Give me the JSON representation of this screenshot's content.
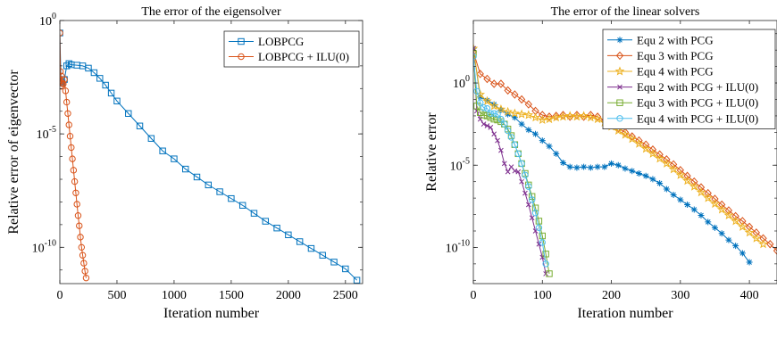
{
  "colors": {
    "blue": "#0072bd",
    "orange": "#d95319",
    "yellow": "#edb120",
    "purple": "#7e2f8e",
    "green": "#77ac30",
    "cyan": "#4dbeee"
  },
  "chart_data": [
    {
      "type": "line",
      "title": "The error of the eigensolver",
      "xlabel": "Iteration number",
      "ylabel": "Relative error of eigenvector",
      "xlim": [
        0,
        2650
      ],
      "ylim_log10": [
        -11.6,
        0
      ],
      "yscale": "log",
      "legend_position": "top-right",
      "xticks": [
        0,
        500,
        1000,
        1500,
        2000,
        2500
      ],
      "xtick_labels": [
        "0",
        "500",
        "1000",
        "1500",
        "2000",
        "2500"
      ],
      "yticks_log10": [
        0,
        -5,
        -10
      ],
      "ytick_labels": [
        {
          "base": "10",
          "exp": "0"
        },
        {
          "base": "10",
          "exp": "-5"
        },
        {
          "base": "10",
          "exp": "-10"
        }
      ],
      "series": [
        {
          "name": "LOBPCG",
          "color": "blue",
          "marker": "square",
          "x": [
            0,
            10,
            20,
            40,
            60,
            80,
            100,
            150,
            200,
            250,
            300,
            350,
            400,
            450,
            500,
            600,
            700,
            800,
            900,
            1000,
            1100,
            1200,
            1300,
            1400,
            1500,
            1600,
            1700,
            1800,
            1900,
            2000,
            2100,
            2200,
            2300,
            2400,
            2500,
            2600
          ],
          "log10y": [
            -0.55,
            -2.7,
            -2.75,
            -2.6,
            -2.0,
            -1.9,
            -1.95,
            -1.97,
            -2.0,
            -2.1,
            -2.3,
            -2.55,
            -2.85,
            -3.2,
            -3.55,
            -4.1,
            -4.65,
            -5.2,
            -5.75,
            -6.1,
            -6.55,
            -6.9,
            -7.25,
            -7.55,
            -7.85,
            -8.15,
            -8.5,
            -8.85,
            -9.15,
            -9.45,
            -9.75,
            -10.05,
            -10.35,
            -10.65,
            -10.95,
            -11.45
          ]
        },
        {
          "name": "LOBPCG + ILU(0)",
          "color": "orange",
          "marker": "circle",
          "x": [
            0,
            5,
            10,
            15,
            20,
            30,
            40,
            50,
            60,
            70,
            80,
            90,
            100,
            110,
            120,
            130,
            140,
            150,
            160,
            170,
            180,
            190,
            200,
            210,
            220,
            230
          ],
          "log10y": [
            -0.55,
            -2.25,
            -2.9,
            -2.45,
            -2.75,
            -2.8,
            -2.6,
            -3.1,
            -3.6,
            -4.1,
            -4.6,
            -5.1,
            -5.6,
            -6.1,
            -6.6,
            -7.1,
            -7.6,
            -8.1,
            -8.6,
            -9.05,
            -9.55,
            -10.0,
            -10.35,
            -10.7,
            -11.05,
            -11.35
          ]
        }
      ]
    },
    {
      "type": "line",
      "title": "The error of the linear solvers",
      "xlabel": "Iteration number",
      "ylabel": "Relative error",
      "xlim": [
        0,
        440
      ],
      "ylim_log10": [
        -12.2,
        3.8
      ],
      "yscale": "log",
      "legend_position": "top-right",
      "xticks": [
        0,
        100,
        200,
        300,
        400
      ],
      "xtick_labels": [
        "0",
        "100",
        "200",
        "300",
        "400"
      ],
      "yticks_log10": [
        0,
        -5,
        -10
      ],
      "ytick_labels": [
        {
          "base": "10",
          "exp": "0"
        },
        {
          "base": "10",
          "exp": "-5"
        },
        {
          "base": "10",
          "exp": "-10"
        }
      ],
      "series": [
        {
          "name": "Equ 2 with PCG",
          "color": "blue",
          "marker": "star",
          "x": [
            0,
            10,
            20,
            30,
            40,
            50,
            60,
            70,
            80,
            90,
            100,
            110,
            120,
            130,
            140,
            150,
            160,
            170,
            180,
            190,
            200,
            210,
            220,
            230,
            240,
            250,
            260,
            270,
            280,
            290,
            300,
            310,
            320,
            330,
            340,
            350,
            360,
            370,
            380,
            390,
            400
          ],
          "log10y": [
            2.1,
            -0.85,
            -1.05,
            -1.3,
            -1.65,
            -1.9,
            -2.1,
            -2.5,
            -2.85,
            -3.1,
            -3.5,
            -3.85,
            -4.3,
            -4.85,
            -5.1,
            -5.15,
            -5.1,
            -5.15,
            -5.1,
            -5.1,
            -4.9,
            -5.0,
            -5.2,
            -5.35,
            -5.5,
            -5.65,
            -5.85,
            -6.1,
            -6.45,
            -6.8,
            -7.1,
            -7.4,
            -7.7,
            -8.05,
            -8.45,
            -8.8,
            -9.15,
            -9.55,
            -9.9,
            -10.35,
            -10.9
          ]
        },
        {
          "name": "Equ 3 with PCG",
          "color": "orange",
          "marker": "diamond",
          "x": [
            0,
            10,
            20,
            30,
            40,
            50,
            60,
            70,
            80,
            90,
            100,
            110,
            120,
            130,
            140,
            150,
            160,
            170,
            180,
            190,
            200,
            210,
            220,
            230,
            240,
            250,
            260,
            270,
            280,
            290,
            300,
            310,
            320,
            330,
            340,
            350,
            360,
            370,
            380,
            390,
            400,
            410,
            420,
            430,
            440
          ],
          "log10y": [
            1.9,
            0.55,
            0.25,
            -0.05,
            -0.05,
            -0.45,
            -0.7,
            -1.0,
            -1.3,
            -1.7,
            -1.95,
            -2.05,
            -2.0,
            -1.95,
            -2.05,
            -1.95,
            -2.05,
            -1.95,
            -2.05,
            -2.3,
            -2.5,
            -2.75,
            -3.0,
            -3.25,
            -3.5,
            -3.75,
            -4.05,
            -4.35,
            -4.65,
            -4.95,
            -5.3,
            -5.65,
            -6.0,
            -6.35,
            -6.7,
            -7.05,
            -7.4,
            -7.75,
            -8.1,
            -8.4,
            -8.75,
            -9.1,
            -9.45,
            -9.8,
            -10.2
          ]
        },
        {
          "name": "Equ 4 with PCG",
          "color": "yellow",
          "marker": "pentagram",
          "x": [
            0,
            10,
            20,
            30,
            40,
            50,
            60,
            70,
            80,
            90,
            100,
            110,
            120,
            130,
            140,
            150,
            160,
            170,
            180,
            190,
            200,
            210,
            220,
            230,
            240,
            250,
            260,
            270,
            280,
            290,
            300,
            310,
            320,
            330,
            340,
            350,
            360,
            370,
            380,
            390,
            400,
            410,
            420
          ],
          "log10y": [
            2.1,
            -0.7,
            -1.1,
            -1.4,
            -1.6,
            -1.75,
            -1.85,
            -1.9,
            -1.95,
            -2.1,
            -2.25,
            -2.2,
            -2.1,
            -2.05,
            -2.0,
            -2.05,
            -2.0,
            -2.1,
            -2.2,
            -2.4,
            -2.65,
            -2.9,
            -3.15,
            -3.4,
            -3.7,
            -4.0,
            -4.3,
            -4.6,
            -4.9,
            -5.25,
            -5.6,
            -5.95,
            -6.3,
            -6.65,
            -7.0,
            -7.35,
            -7.7,
            -8.05,
            -8.4,
            -8.75,
            -9.1,
            -9.45,
            -9.8
          ]
        },
        {
          "name": "Equ 2 with PCG + ILU(0)",
          "color": "purple",
          "marker": "x",
          "x": [
            0,
            5,
            10,
            15,
            20,
            25,
            30,
            35,
            40,
            45,
            50,
            55,
            60,
            65,
            70,
            75,
            80,
            85,
            90,
            95,
            100,
            105
          ],
          "log10y": [
            2.1,
            -1.7,
            -2.2,
            -2.5,
            -2.6,
            -2.7,
            -3.1,
            -3.5,
            -4.1,
            -4.9,
            -5.4,
            -5.1,
            -5.35,
            -5.4,
            -6.0,
            -6.7,
            -7.4,
            -8.2,
            -9.0,
            -9.8,
            -10.6,
            -11.6
          ]
        },
        {
          "name": "Equ 3 with PCG + ILU(0)",
          "color": "green",
          "marker": "square",
          "x": [
            0,
            5,
            10,
            15,
            20,
            25,
            30,
            35,
            40,
            45,
            50,
            55,
            60,
            65,
            70,
            75,
            80,
            85,
            90,
            95,
            100,
            105,
            110
          ],
          "log10y": [
            1.8,
            -1.4,
            -1.8,
            -1.95,
            -2.0,
            -2.1,
            -2.2,
            -2.25,
            -2.35,
            -2.5,
            -2.8,
            -3.2,
            -3.75,
            -4.3,
            -4.9,
            -5.5,
            -6.2,
            -6.9,
            -7.6,
            -8.4,
            -9.3,
            -10.4,
            -11.6
          ]
        },
        {
          "name": "Equ 4 with PCG + ILU(0)",
          "color": "cyan",
          "marker": "circle",
          "x": [
            0,
            5,
            10,
            15,
            20,
            25,
            30,
            35,
            40,
            45,
            50,
            55,
            60,
            65,
            70,
            75,
            80,
            85,
            90,
            95,
            100,
            105
          ],
          "log10y": [
            1.6,
            -0.5,
            -1.2,
            -1.5,
            -1.55,
            -1.85,
            -1.85,
            -1.9,
            -2.2,
            -2.5,
            -2.9,
            -3.3,
            -3.75,
            -4.3,
            -4.9,
            -5.6,
            -6.3,
            -7.1,
            -7.9,
            -8.8,
            -9.7,
            -11.0
          ]
        }
      ]
    }
  ]
}
